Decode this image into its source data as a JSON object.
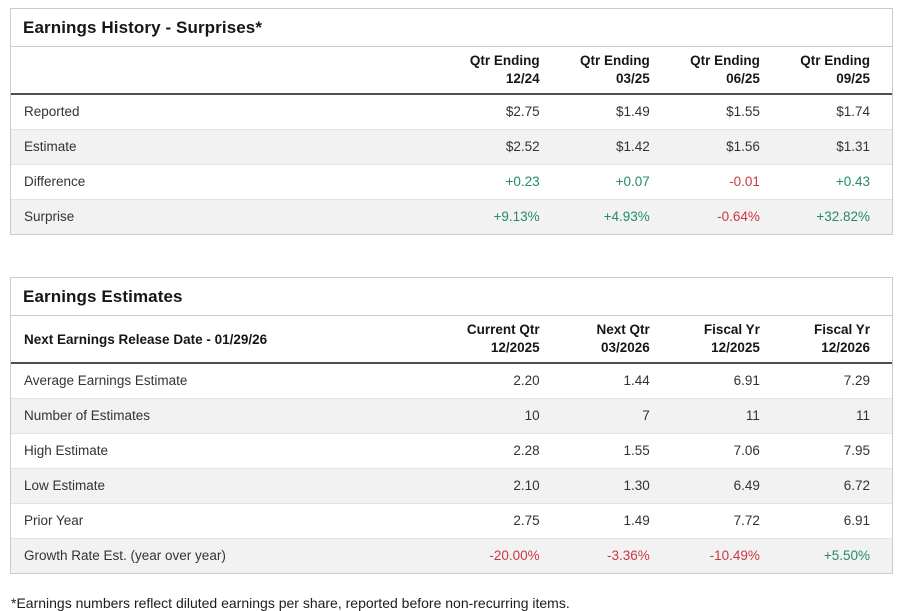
{
  "colors": {
    "positive": "#238c64",
    "negative": "#cb3844",
    "stripe": "#f2f2f2",
    "header_rule": "#4f4f4f",
    "panel_border": "#cbcbcb"
  },
  "earnings_history": {
    "title": "Earnings History - Surprises*",
    "columns": [
      "Qtr Ending\n12/24",
      "Qtr Ending\n03/25",
      "Qtr Ending\n06/25",
      "Qtr Ending\n09/25"
    ],
    "rows": [
      {
        "label": "Reported",
        "values": [
          "$2.75",
          "$1.49",
          "$1.55",
          "$1.74"
        ]
      },
      {
        "label": "Estimate",
        "values": [
          "$2.52",
          "$1.42",
          "$1.56",
          "$1.31"
        ]
      },
      {
        "label": "Difference",
        "values": [
          "+0.23",
          "+0.07",
          "-0.01",
          "+0.43"
        ]
      },
      {
        "label": "Surprise",
        "values": [
          "+9.13%",
          "+4.93%",
          "-0.64%",
          "+32.82%"
        ]
      }
    ]
  },
  "earnings_estimates": {
    "title": "Earnings Estimates",
    "release_date_label": "Next Earnings Release Date - 01/29/26",
    "columns": [
      "Current Qtr\n12/2025",
      "Next Qtr\n03/2026",
      "Fiscal Yr\n12/2025",
      "Fiscal Yr\n12/2026"
    ],
    "rows": [
      {
        "label": "Average Earnings Estimate",
        "values": [
          "2.20",
          "1.44",
          "6.91",
          "7.29"
        ]
      },
      {
        "label": "Number of Estimates",
        "values": [
          "10",
          "7",
          "11",
          "11"
        ]
      },
      {
        "label": "High Estimate",
        "values": [
          "2.28",
          "1.55",
          "7.06",
          "7.95"
        ]
      },
      {
        "label": "Low Estimate",
        "values": [
          "2.10",
          "1.30",
          "6.49",
          "6.72"
        ]
      },
      {
        "label": "Prior Year",
        "values": [
          "2.75",
          "1.49",
          "7.72",
          "6.91"
        ]
      },
      {
        "label": "Growth Rate Est. (year over year)",
        "values": [
          "-20.00%",
          "-3.36%",
          "-10.49%",
          "+5.50%"
        ]
      }
    ]
  },
  "footnote": "*Earnings numbers reflect diluted earnings per share, reported before non-recurring items."
}
